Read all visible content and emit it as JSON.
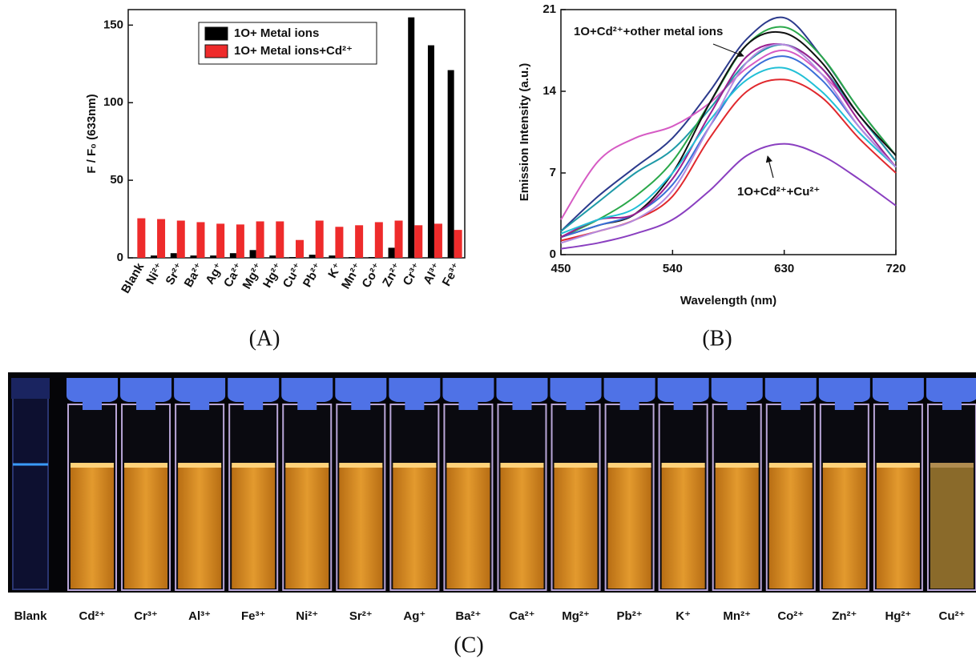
{
  "chart_data": [
    {
      "type": "bar",
      "caption": "(A)",
      "y_label": "F / F₀ (633nm)",
      "categories": [
        "Blank",
        "Ni²⁺",
        "Sr²⁺",
        "Ba²⁺",
        "Ag⁺",
        "Ca²⁺",
        "Mg²⁺",
        "Hg²⁺",
        "Cu²⁺",
        "Pb²⁺",
        "K⁺",
        "Mn²⁺",
        "Co²⁺",
        "Zn²⁺",
        "Cr³⁺",
        "Al³⁺",
        "Fe³⁺"
      ],
      "series": [
        {
          "name": "1O+ Metal ions",
          "color": "#000000",
          "values": [
            0,
            1.5,
            3,
            1.5,
            1.5,
            3,
            5,
            1.5,
            0.5,
            2,
            1.5,
            0.5,
            0.5,
            6.5,
            155,
            137,
            121
          ]
        },
        {
          "name": "1O+ Metal ions+Cd²⁺",
          "color": "#ee2b2b",
          "values": [
            25.5,
            25,
            24,
            23,
            22,
            21.5,
            23.5,
            23.5,
            11.5,
            24,
            20,
            21,
            23,
            24,
            21,
            22,
            18
          ]
        }
      ],
      "ylim": [
        0,
        160
      ],
      "yticks": [
        0,
        50,
        100,
        150
      ],
      "legend": "top-right"
    },
    {
      "type": "line",
      "caption": "(B)",
      "x_label": "Wavelength (nm)",
      "y_label": "Emission Intensity (a.u.)",
      "x": [
        450,
        480,
        510,
        540,
        570,
        600,
        630,
        660,
        690,
        720
      ],
      "series": [
        {
          "color": "#2b3a8c",
          "values": [
            2,
            5,
            7.5,
            10,
            14,
            18.5,
            20.3,
            17,
            12.5,
            8.5
          ]
        },
        {
          "color": "#d65bc4",
          "values": [
            3,
            8,
            10,
            11,
            13,
            16,
            17.5,
            15.5,
            12,
            8
          ]
        },
        {
          "color": "#1f9aa8",
          "values": [
            2,
            4.5,
            7,
            9,
            12.5,
            16.5,
            18,
            16,
            12,
            8
          ]
        },
        {
          "color": "#2aa84a",
          "values": [
            1.5,
            3,
            5,
            8,
            13,
            18,
            19.5,
            17,
            12.5,
            8.5
          ]
        },
        {
          "color": "#111111",
          "values": [
            1.5,
            2.5,
            3.5,
            7,
            13,
            18,
            19,
            16.5,
            12,
            8.5
          ]
        },
        {
          "color": "#3b6fd8",
          "values": [
            1.5,
            2.5,
            3.5,
            6,
            11,
            15.5,
            17,
            15,
            11,
            7.5
          ]
        },
        {
          "color": "#e0282d",
          "values": [
            1.2,
            2,
            3,
            5,
            10,
            14,
            15,
            13.5,
            10,
            7
          ]
        },
        {
          "color": "#9b1f8f",
          "values": [
            1.5,
            3,
            3.5,
            6.5,
            12,
            17,
            18,
            16,
            11.5,
            7.5
          ]
        },
        {
          "color": "#22c0d6",
          "values": [
            1.8,
            3,
            4,
            7,
            11.5,
            15,
            16,
            14,
            10.5,
            7.5
          ]
        },
        {
          "color": "#8a3fc0",
          "values": [
            0.5,
            1,
            1.8,
            3,
            5.5,
            8.5,
            9.5,
            8.5,
            6.5,
            4.2
          ]
        },
        {
          "color": "#b48be0",
          "values": [
            1,
            2,
            3,
            5.5,
            11,
            16.5,
            18,
            15.5,
            11,
            7.5
          ]
        }
      ],
      "xlim": [
        450,
        720
      ],
      "xticks": [
        450,
        540,
        630,
        720
      ],
      "ylim": [
        0,
        21
      ],
      "yticks": [
        0,
        7,
        14,
        21
      ],
      "annotations": [
        "1O+Cd²⁺+other metal ions",
        "1O+Cd²⁺+Cu²⁺"
      ]
    }
  ],
  "photo": {
    "caption": "(C)",
    "labels": [
      "Blank",
      "Cd²⁺",
      "Cr³⁺",
      "Al³⁺",
      "Fe³⁺",
      "Ni²⁺",
      "Sr²⁺",
      "Ag⁺",
      "Ba²⁺",
      "Ca²⁺",
      "Mg²⁺",
      "Pb²⁺",
      "K⁺",
      "Mn²⁺",
      "Co²⁺",
      "Zn²⁺",
      "Hg²⁺",
      "Cu²⁺"
    ]
  }
}
